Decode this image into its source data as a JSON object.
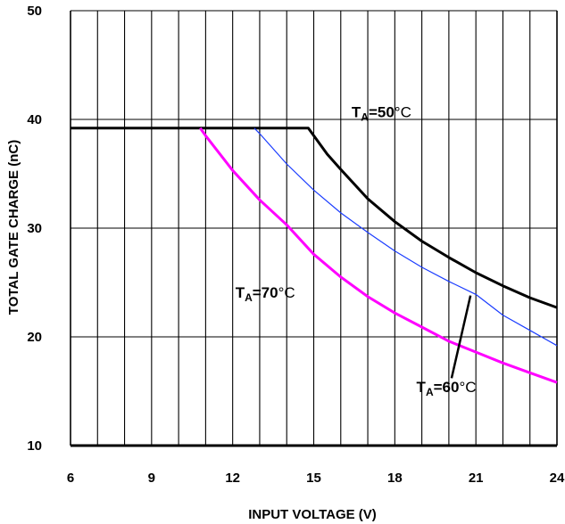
{
  "chart_data": {
    "type": "line",
    "xlabel": "INPUT VOLTAGE (V)",
    "ylabel": "TOTAL GATE CHARGE (nC)",
    "xlim": [
      6,
      24
    ],
    "ylim": [
      10,
      50
    ],
    "grid": true,
    "x_ticks": [
      6,
      9,
      12,
      15,
      18,
      21,
      24
    ],
    "y_ticks": [
      10,
      20,
      30,
      40,
      50
    ],
    "colors": {
      "ta50": "#000000",
      "ta60": "#1a3cff",
      "ta70": "#ff00ff",
      "grid": "#000000"
    },
    "series": [
      {
        "key": "ta50",
        "x": [
          6,
          14.8,
          15.5,
          16,
          17,
          18,
          19,
          20,
          21,
          22,
          23,
          24
        ],
        "y": [
          39.2,
          39.2,
          36.8,
          35.4,
          32.7,
          30.6,
          28.8,
          27.3,
          25.9,
          24.7,
          23.6,
          22.7
        ]
      },
      {
        "key": "ta60",
        "x": [
          12.8,
          13,
          14,
          15,
          16,
          17,
          18,
          19,
          20,
          21,
          22,
          23,
          24
        ],
        "y": [
          39.2,
          38.7,
          35.9,
          33.5,
          31.4,
          29.6,
          27.9,
          26.4,
          25.1,
          23.9,
          22.0,
          20.6,
          19.2
        ]
      },
      {
        "key": "ta70",
        "x": [
          10.8,
          11,
          12,
          13,
          14,
          15,
          16,
          17,
          18,
          19,
          20,
          21,
          22,
          23,
          24
        ],
        "y": [
          39.2,
          38.5,
          35.3,
          32.6,
          30.3,
          27.6,
          25.5,
          23.7,
          22.2,
          20.9,
          19.6,
          18.6,
          17.6,
          16.7,
          15.8
        ]
      }
    ],
    "annotations": [
      {
        "key": "ta50",
        "prefix": "T",
        "sub": "A",
        "value": "=50",
        "unit": "°C",
        "x": 16.4,
        "y": 40.2
      },
      {
        "key": "ta70",
        "prefix": "T",
        "sub": "A",
        "value": "=70",
        "unit": "°C",
        "x": 12.1,
        "y": 23.6
      },
      {
        "key": "ta60",
        "prefix": "T",
        "sub": "A",
        "value": "=60",
        "unit": "°C",
        "x": 18.8,
        "y": 14.9,
        "leader": [
          [
            20.1,
            16.2
          ],
          [
            20.8,
            23.8
          ]
        ]
      }
    ]
  }
}
